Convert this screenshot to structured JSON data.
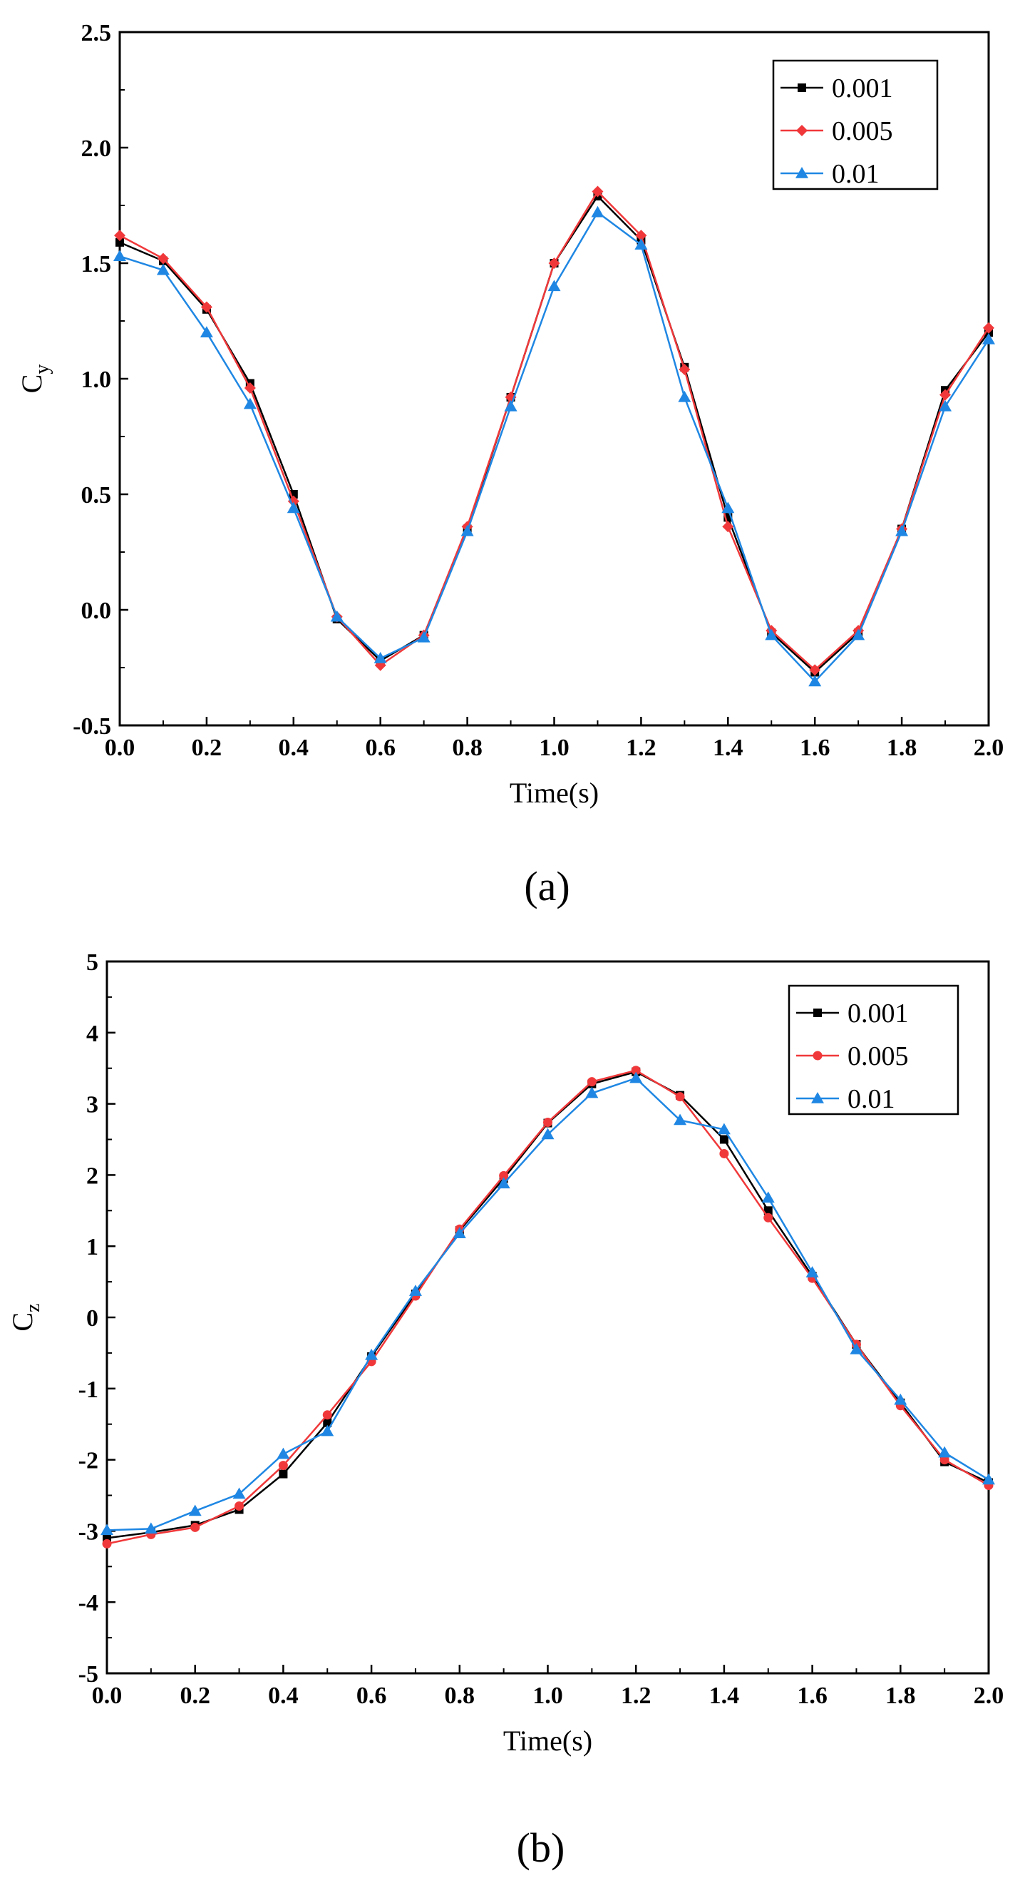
{
  "chart_data": [
    {
      "type": "line",
      "panel_label": "(a)",
      "xlabel": "Time(s)",
      "ylabel_main": "C",
      "ylabel_sub": "y",
      "xlim": [
        0.0,
        2.0
      ],
      "ylim": [
        -0.5,
        2.5
      ],
      "xticks": [
        "0.0",
        "0.2",
        "0.4",
        "0.6",
        "0.8",
        "1.0",
        "1.2",
        "1.4",
        "1.6",
        "1.8",
        "2.0"
      ],
      "yticks": [
        "-0.5",
        "0.0",
        "0.5",
        "1.0",
        "1.5",
        "2.0",
        "2.5"
      ],
      "x": [
        0.0,
        0.1,
        0.2,
        0.3,
        0.4,
        0.5,
        0.6,
        0.7,
        0.8,
        0.9,
        1.0,
        1.1,
        1.2,
        1.3,
        1.4,
        1.5,
        1.6,
        1.7,
        1.8,
        1.9,
        2.0
      ],
      "legend_position": "top-right",
      "series": [
        {
          "name": "0.001",
          "color": "#000000",
          "marker": "square",
          "values": [
            1.59,
            1.51,
            1.3,
            0.98,
            0.5,
            -0.04,
            -0.22,
            -0.11,
            0.35,
            0.92,
            1.5,
            1.79,
            1.6,
            1.05,
            0.4,
            -0.1,
            -0.27,
            -0.1,
            0.35,
            0.95,
            1.2
          ]
        },
        {
          "name": "0.005",
          "color": "#f0383a",
          "marker": "diamond",
          "values": [
            1.62,
            1.52,
            1.31,
            0.96,
            0.47,
            -0.03,
            -0.24,
            -0.11,
            0.36,
            0.92,
            1.5,
            1.81,
            1.62,
            1.04,
            0.36,
            -0.09,
            -0.26,
            -0.09,
            0.35,
            0.93,
            1.22
          ]
        },
        {
          "name": "0.01",
          "color": "#1f87e3",
          "marker": "triangle",
          "values": [
            1.53,
            1.47,
            1.2,
            0.89,
            0.44,
            -0.03,
            -0.21,
            -0.12,
            0.34,
            0.88,
            1.4,
            1.72,
            1.58,
            0.92,
            0.44,
            -0.11,
            -0.31,
            -0.11,
            0.34,
            0.88,
            1.17
          ]
        }
      ]
    },
    {
      "type": "line",
      "panel_label": "(b)",
      "xlabel": "Time(s)",
      "ylabel_main": "C",
      "ylabel_sub": "z",
      "xlim": [
        0.0,
        2.0
      ],
      "ylim": [
        -5,
        5
      ],
      "xticks": [
        "0.0",
        "0.2",
        "0.4",
        "0.6",
        "0.8",
        "1.0",
        "1.2",
        "1.4",
        "1.6",
        "1.8",
        "2.0"
      ],
      "yticks": [
        "-5",
        "-4",
        "-3",
        "-2",
        "-1",
        "0",
        "1",
        "2",
        "3",
        "4",
        "5"
      ],
      "x": [
        0.0,
        0.1,
        0.2,
        0.3,
        0.4,
        0.5,
        0.6,
        0.7,
        0.8,
        0.9,
        1.0,
        1.1,
        1.2,
        1.3,
        1.4,
        1.5,
        1.6,
        1.7,
        1.8,
        1.9,
        2.0
      ],
      "legend_position": "top-right",
      "series": [
        {
          "name": "0.001",
          "color": "#000000",
          "marker": "square",
          "values": [
            -3.1,
            -3.02,
            -2.92,
            -2.7,
            -2.2,
            -1.48,
            -0.55,
            0.33,
            1.22,
            1.95,
            2.73,
            3.28,
            3.45,
            3.12,
            2.5,
            1.5,
            0.58,
            -0.38,
            -1.2,
            -2.03,
            -2.32
          ]
        },
        {
          "name": "0.005",
          "color": "#f0383a",
          "marker": "circle",
          "values": [
            -3.18,
            -3.05,
            -2.95,
            -2.65,
            -2.08,
            -1.37,
            -0.62,
            0.3,
            1.24,
            1.99,
            2.74,
            3.31,
            3.47,
            3.1,
            2.3,
            1.4,
            0.55,
            -0.38,
            -1.24,
            -2.0,
            -2.36
          ]
        },
        {
          "name": "0.01",
          "color": "#1f87e3",
          "marker": "triangle",
          "values": [
            -2.99,
            -2.97,
            -2.72,
            -2.48,
            -1.92,
            -1.6,
            -0.53,
            0.37,
            1.18,
            1.88,
            2.57,
            3.15,
            3.36,
            2.77,
            2.64,
            1.68,
            0.63,
            -0.45,
            -1.16,
            -1.9,
            -2.28
          ]
        }
      ]
    }
  ]
}
